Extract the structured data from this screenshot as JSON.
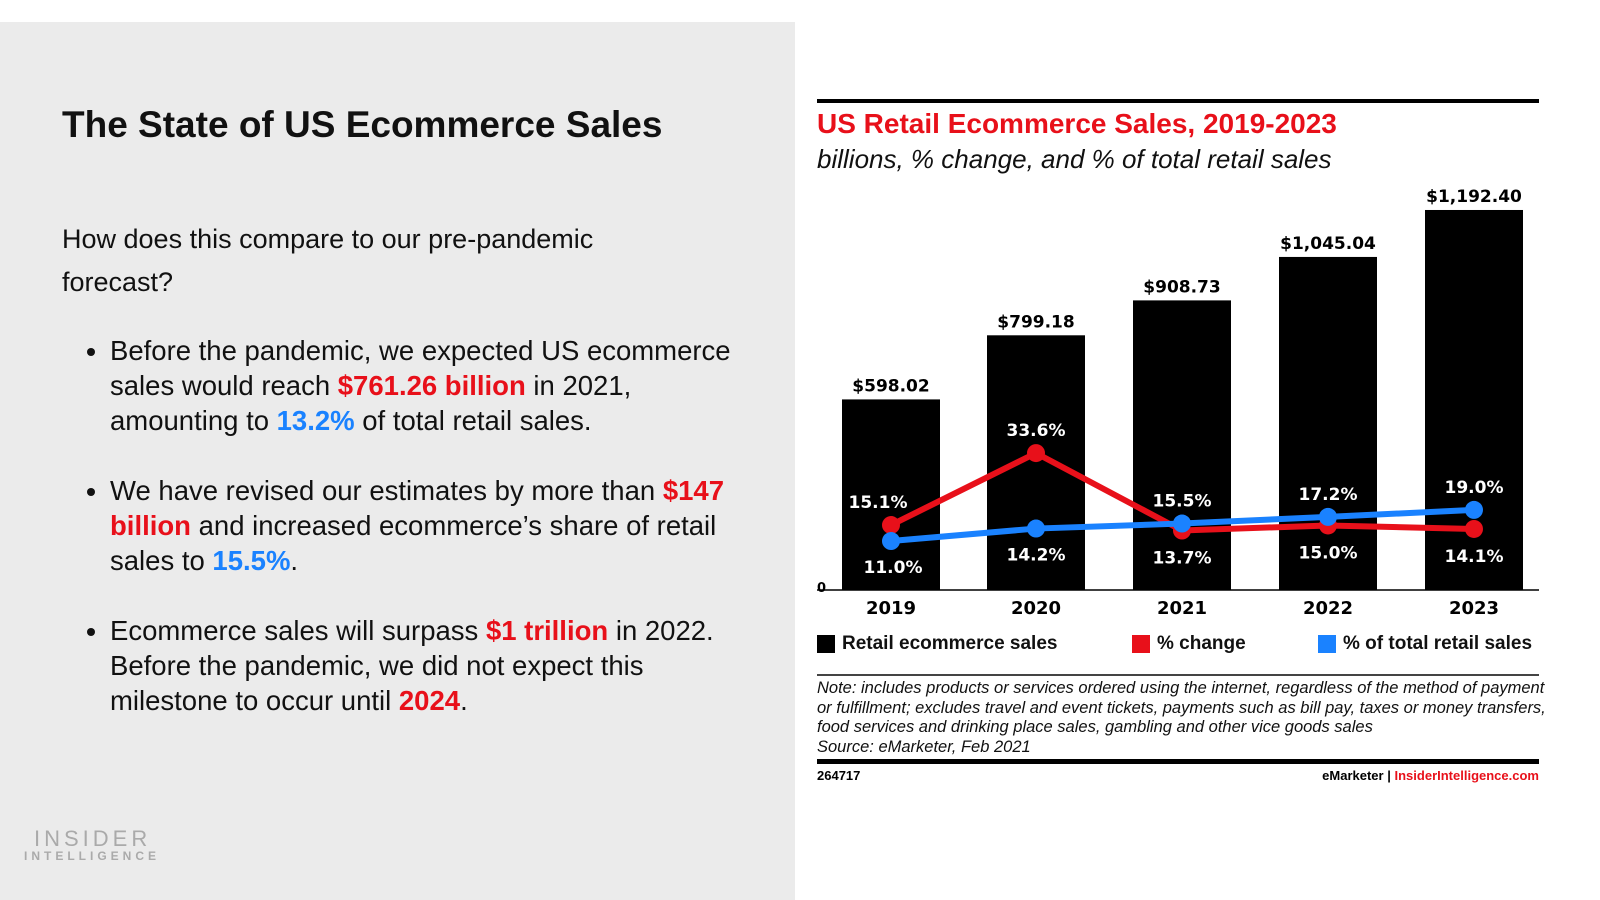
{
  "slide": {
    "title": "The State of US Ecommerce Sales",
    "intro": "How does this compare to our pre-pandemic forecast?",
    "bullets": [
      {
        "parts": [
          {
            "t": "Before the pandemic, we expected US ecommerce sales would reach "
          },
          {
            "t": "$761.26 billion",
            "c": "r"
          },
          {
            "t": " in 2021, amounting to "
          },
          {
            "t": "13.2%",
            "c": "b"
          },
          {
            "t": " of total retail sales."
          }
        ]
      },
      {
        "parts": [
          {
            "t": "We have revised our estimates by more than "
          },
          {
            "t": "$147 billion",
            "c": "r"
          },
          {
            "t": " and increased ecommerce’s share of retail sales to "
          },
          {
            "t": "15.5%",
            "c": "b"
          },
          {
            "t": "."
          }
        ]
      },
      {
        "parts": [
          {
            "t": "Ecommerce sales will surpass "
          },
          {
            "t": "$1 trillion",
            "c": "r"
          },
          {
            "t": " in 2022. Before the pandemic, we did not expect this milestone to occur until "
          },
          {
            "t": "2024",
            "c": "r"
          },
          {
            "t": "."
          }
        ]
      }
    ],
    "logo": {
      "line1": "INSIDER",
      "line2": "INTELLIGENCE"
    }
  },
  "chart_data": {
    "type": "bar",
    "title": "US Retail Ecommerce Sales, 2019-2023",
    "subtitle": "billions, % change, and % of total retail sales",
    "categories": [
      "2019",
      "2020",
      "2021",
      "2022",
      "2023"
    ],
    "series": [
      {
        "name": "Retail ecommerce sales",
        "type": "bar",
        "color": "#000000",
        "values": [
          598.02,
          799.18,
          908.73,
          1045.04,
          1192.4
        ],
        "labels": [
          "$598.02",
          "$799.18",
          "$908.73",
          "$1,045.04",
          "$1,192.40"
        ]
      },
      {
        "name": "% change",
        "type": "line",
        "color": "#e8101a",
        "values": [
          15.1,
          33.6,
          13.7,
          15.0,
          14.1
        ],
        "labels": [
          "15.1%",
          "33.6%",
          "13.7%",
          "15.0%",
          "14.1%"
        ]
      },
      {
        "name": "% of total retail sales",
        "type": "line",
        "color": "#1a82ff",
        "values": [
          11.0,
          14.2,
          15.5,
          17.2,
          19.0
        ],
        "labels": [
          "11.0%",
          "14.2%",
          "15.5%",
          "17.2%",
          "19.0%"
        ]
      }
    ],
    "ytick": "0",
    "legend": "bottom",
    "note": "Note: includes products or services ordered using the internet, regardless of the method of payment or fulfillment; excludes travel and event tickets, payments such as bill pay, taxes or money transfers, food services and drinking place sales, gambling and other vice goods sales",
    "source": "Source: eMarketer, Feb 2021",
    "chart_id": "264717",
    "brand1": "eMarketer",
    "sep": "|",
    "brand2": "InsiderIntelligence.com"
  }
}
